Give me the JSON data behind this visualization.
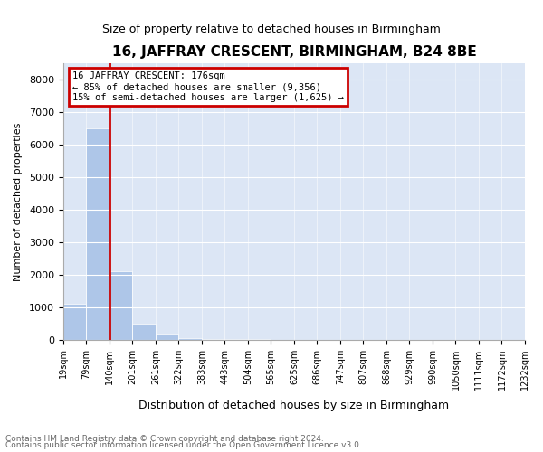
{
  "title": "16, JAFFRAY CRESCENT, BIRMINGHAM, B24 8BE",
  "subtitle": "Size of property relative to detached houses in Birmingham",
  "xlabel": "Distribution of detached houses by size in Birmingham",
  "ylabel": "Number of detached properties",
  "property_label": "16 JAFFRAY CRESCENT: 176sqm",
  "annotation_line1": "← 85% of detached houses are smaller (9,356)",
  "annotation_line2": "15% of semi-detached houses are larger (1,625) →",
  "footnote1": "Contains HM Land Registry data © Crown copyright and database right 2024.",
  "footnote2": "Contains public sector information licensed under the Open Government Licence v3.0.",
  "bar_color": "#aec6e8",
  "line_color": "#cc0000",
  "annotation_box_color": "#cc0000",
  "bin_labels": [
    "19sqm",
    "79sqm",
    "140sqm",
    "201sqm",
    "261sqm",
    "322sqm",
    "383sqm",
    "443sqm",
    "504sqm",
    "565sqm",
    "625sqm",
    "686sqm",
    "747sqm",
    "807sqm",
    "868sqm",
    "929sqm",
    "990sqm",
    "1050sqm",
    "1111sqm",
    "1172sqm",
    "1232sqm"
  ],
  "bar_heights": [
    1100,
    6500,
    2100,
    500,
    150,
    60,
    20,
    10,
    5,
    3,
    2,
    1,
    1,
    1,
    0,
    0,
    0,
    0,
    0,
    0
  ],
  "ylim": [
    0,
    8500
  ],
  "yticks": [
    0,
    1000,
    2000,
    3000,
    4000,
    5000,
    6000,
    7000,
    8000
  ],
  "background_color": "#dce6f5",
  "property_line_x": 1.5
}
